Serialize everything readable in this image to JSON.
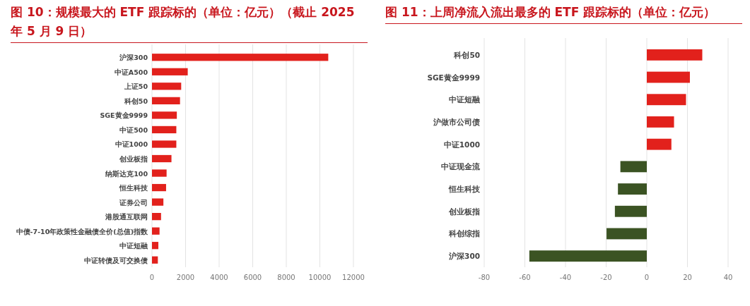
{
  "chart_data": [
    {
      "type": "bar",
      "orientation": "horizontal",
      "title": "图 10：规模最大的 ETF 跟踪标的（单位：亿元）（截止 2025 年 5 月 9 日）",
      "categories": [
        "沪深300",
        "中证A500",
        "上证50",
        "科创50",
        "SGE黄金9999",
        "中证500",
        "中证1000",
        "创业板指",
        "纳斯达克100",
        "恒生科技",
        "证券公司",
        "港股通互联网",
        "中债-7-10年政策性金融债全价(总值)指数",
        "中证短融",
        "中证转债及可交换债"
      ],
      "values": [
        10500,
        2130,
        1740,
        1670,
        1480,
        1450,
        1450,
        1160,
        870,
        840,
        680,
        540,
        450,
        380,
        350
      ],
      "color": "#e2211c",
      "xlim": [
        0,
        12000
      ],
      "xticks": [
        0,
        2000,
        4000,
        6000,
        8000,
        10000,
        12000
      ],
      "grid": "x"
    },
    {
      "type": "bar",
      "orientation": "horizontal",
      "title": "图 11：上周净流入流出最多的 ETF 跟踪标的（单位：亿元）",
      "categories": [
        "科创50",
        "SGE黄金9999",
        "中证短融",
        "沪做市公司债",
        "中证1000",
        "中证现金流",
        "恒生科技",
        "创业板指",
        "科创综指",
        "沪深300"
      ],
      "values": [
        27.3,
        21.2,
        19.3,
        13.4,
        12.1,
        -13.0,
        -14.2,
        -15.7,
        -19.8,
        -57.8
      ],
      "colors": [
        "#e2211c",
        "#e2211c",
        "#e2211c",
        "#e2211c",
        "#e2211c",
        "#3b5323",
        "#3b5323",
        "#3b5323",
        "#3b5323",
        "#3b5323"
      ],
      "xlim": [
        -80,
        40
      ],
      "xticks": [
        -80,
        -60,
        -40,
        -20,
        0,
        20,
        40
      ],
      "grid": "x"
    }
  ]
}
